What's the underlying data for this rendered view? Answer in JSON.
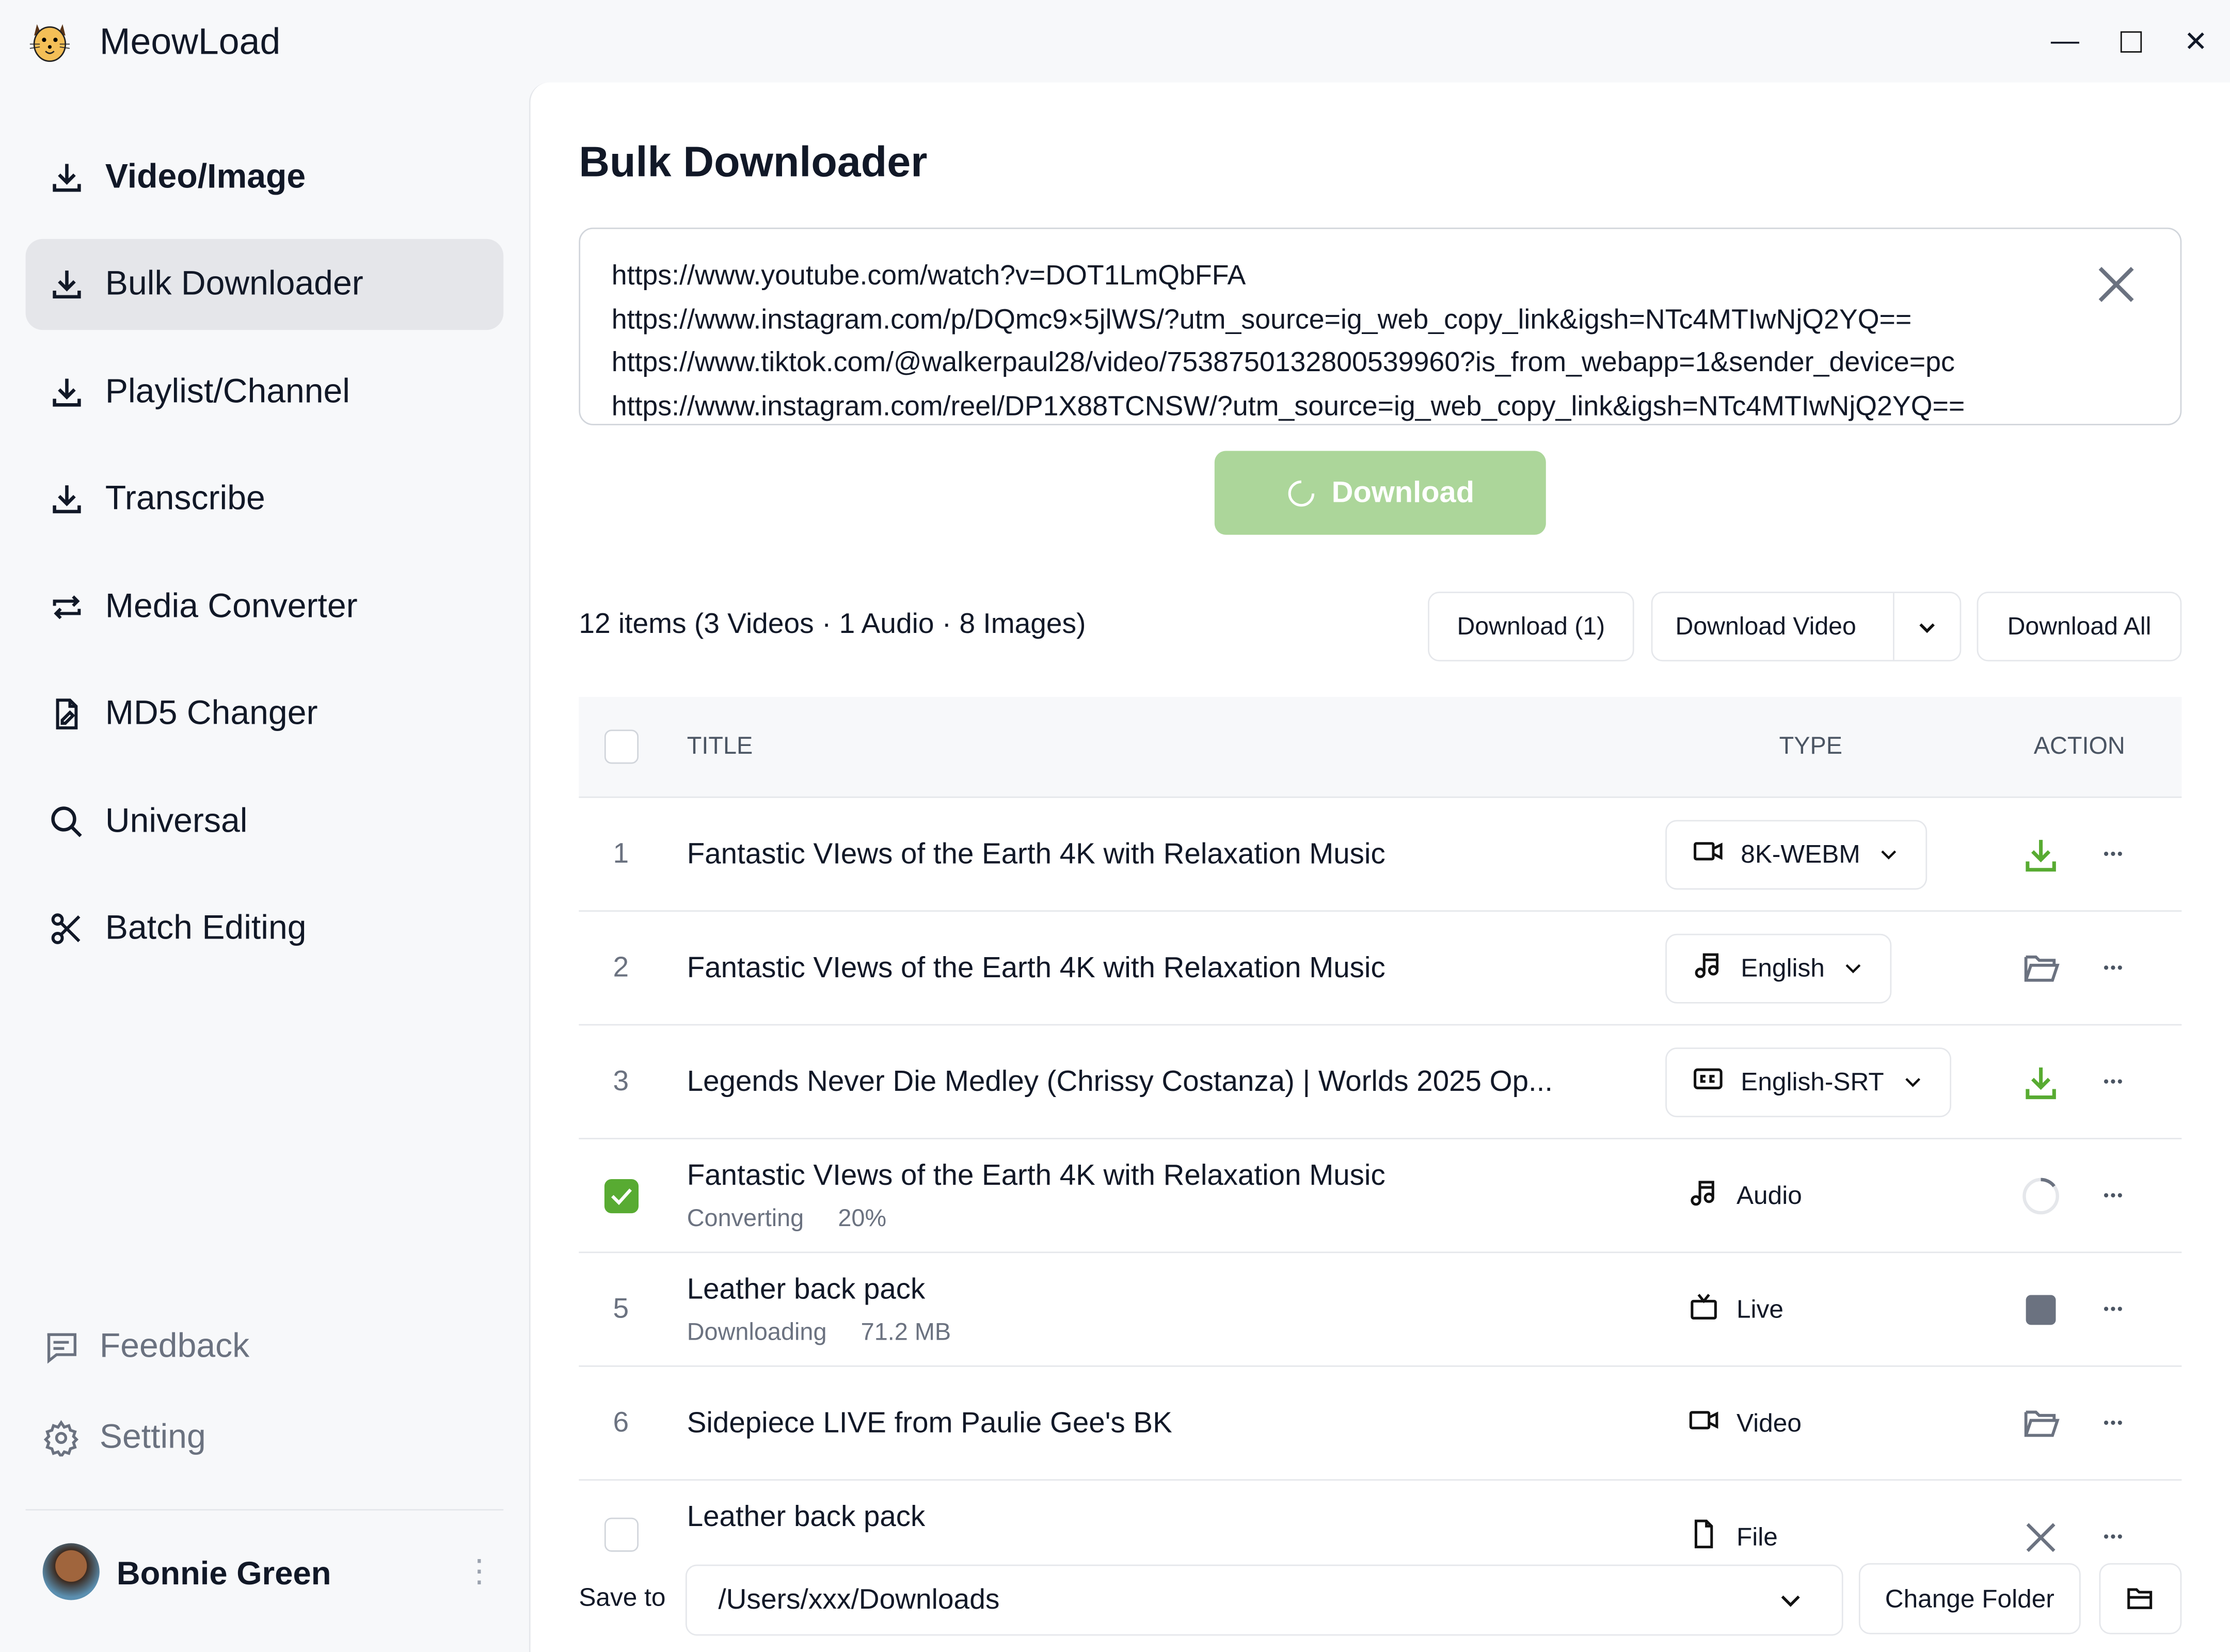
{
  "app": {
    "title": "MeowLoad"
  },
  "sidebar": {
    "items": [
      {
        "label": "Video/Image",
        "icon": "download-icon"
      },
      {
        "label": "Bulk Downloader",
        "icon": "download-icon",
        "active": true
      },
      {
        "label": "Playlist/Channel",
        "icon": "download-icon"
      },
      {
        "label": "Transcribe",
        "icon": "download-icon"
      },
      {
        "label": "Media Converter",
        "icon": "convert-icon"
      },
      {
        "label": "MD5 Changer",
        "icon": "file-edit-icon"
      },
      {
        "label": "Universal",
        "icon": "search-icon"
      },
      {
        "label": "Batch Editing",
        "icon": "scissors-icon"
      }
    ],
    "feedback": "Feedback",
    "setting": "Setting",
    "user": "Bonnie Green"
  },
  "main": {
    "title": "Bulk Downloader",
    "urls": "https://www.youtube.com/watch?v=DOT1LmQbFFA\nhttps://www.instagram.com/p/DQmc9×5jlWS/?utm_source=ig_web_copy_link&igsh=NTc4MTIwNjQ2YQ==\nhttps://www.tiktok.com/@walkerpaul28/video/7538750132800539960?is_from_webapp=1&sender_device=pc\nhttps://www.instagram.com/reel/DP1X88TCNSW/?utm_source=ig_web_copy_link&igsh=NTc4MTIwNjQ2YQ==",
    "download_label": "Download",
    "summary": "12 items (3 Videos · 1 Audio · 8 Images)",
    "btn_download_selected": "Download (1)",
    "btn_download_video": "Download Video",
    "btn_download_all": "Download All",
    "columns": {
      "title": "TITLE",
      "type": "TYPE",
      "action": "ACTION"
    },
    "rows": [
      {
        "num": "1",
        "title": "Fantastic VIews of the Earth 4K with Relaxation Music",
        "type": "8K-WEBM",
        "type_icon": "video-icon",
        "action": "download"
      },
      {
        "num": "2",
        "title": "Fantastic VIews of the Earth 4K with Relaxation Music",
        "type": "English",
        "type_icon": "music-icon",
        "action": "open-folder"
      },
      {
        "num": "3",
        "title": "Legends Never Die Medley (Chrissy Costanza) | Worlds 2025 Op...",
        "type": "English-SRT",
        "type_icon": "cc-icon",
        "action": "download"
      },
      {
        "title": "Fantastic VIews of the Earth 4K with Relaxation Music",
        "status": "Converting",
        "detail": "20%",
        "type": "Audio",
        "type_icon": "music-icon",
        "action": "spinner",
        "checked": true
      },
      {
        "num": "5",
        "title": "Leather back pack",
        "status": "Downloading",
        "detail": "71.2 MB",
        "type": "Live",
        "type_icon": "tv-icon",
        "action": "stop"
      },
      {
        "num": "6",
        "title": "Sidepiece LIVE from Paulie Gee's BK",
        "type": "Video",
        "type_icon": "video-icon",
        "action": "open-folder"
      },
      {
        "title": "Leather back pack",
        "type": "File",
        "type_icon": "file-icon",
        "action": "cancel",
        "checked": false
      }
    ],
    "save_to_label": "Save to",
    "save_path": "/Users/xxx/Downloads",
    "change_folder": "Change Folder"
  },
  "colors": {
    "accent": "#58ab32",
    "download_btn": "#acd69a"
  }
}
